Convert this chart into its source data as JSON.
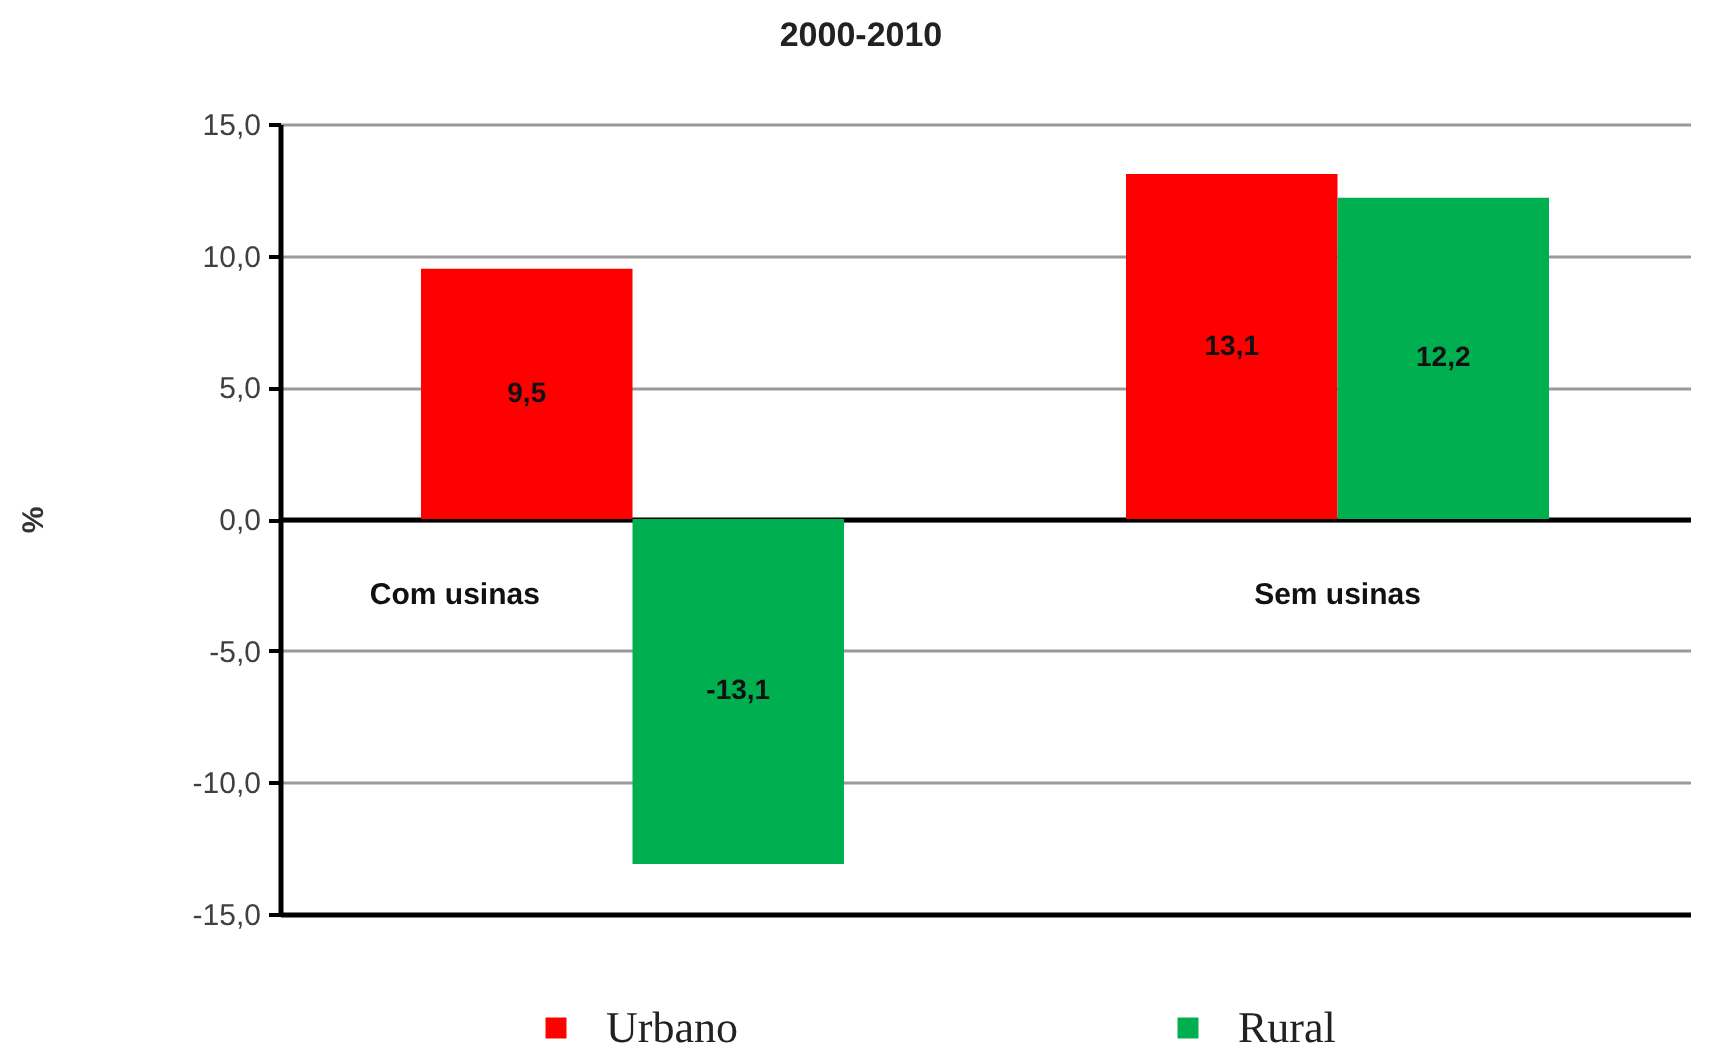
{
  "chart_data": {
    "type": "bar",
    "title": "2000-2010",
    "ylabel": "%",
    "categories": [
      "Com usinas",
      "Sem usinas"
    ],
    "series": [
      {
        "name": "Urbano",
        "color": "#ff0000",
        "values": [
          9.5,
          13.1
        ],
        "value_labels": [
          "9,5",
          "13,1"
        ]
      },
      {
        "name": "Rural",
        "color": "#00b050",
        "values": [
          -13.1,
          12.2
        ],
        "value_labels": [
          "-13,1",
          "12,2"
        ]
      }
    ],
    "ylim": [
      -15,
      15
    ],
    "yticks": [
      {
        "value": -15,
        "label": "-15,0"
      },
      {
        "value": -10,
        "label": "-10,0"
      },
      {
        "value": -5,
        "label": "-5,0"
      },
      {
        "value": 0,
        "label": "0,0"
      },
      {
        "value": 5,
        "label": "5,0"
      },
      {
        "value": 10,
        "label": "10,0"
      },
      {
        "value": 15,
        "label": "15,0"
      }
    ],
    "grid": "y",
    "legend": "bottom"
  }
}
